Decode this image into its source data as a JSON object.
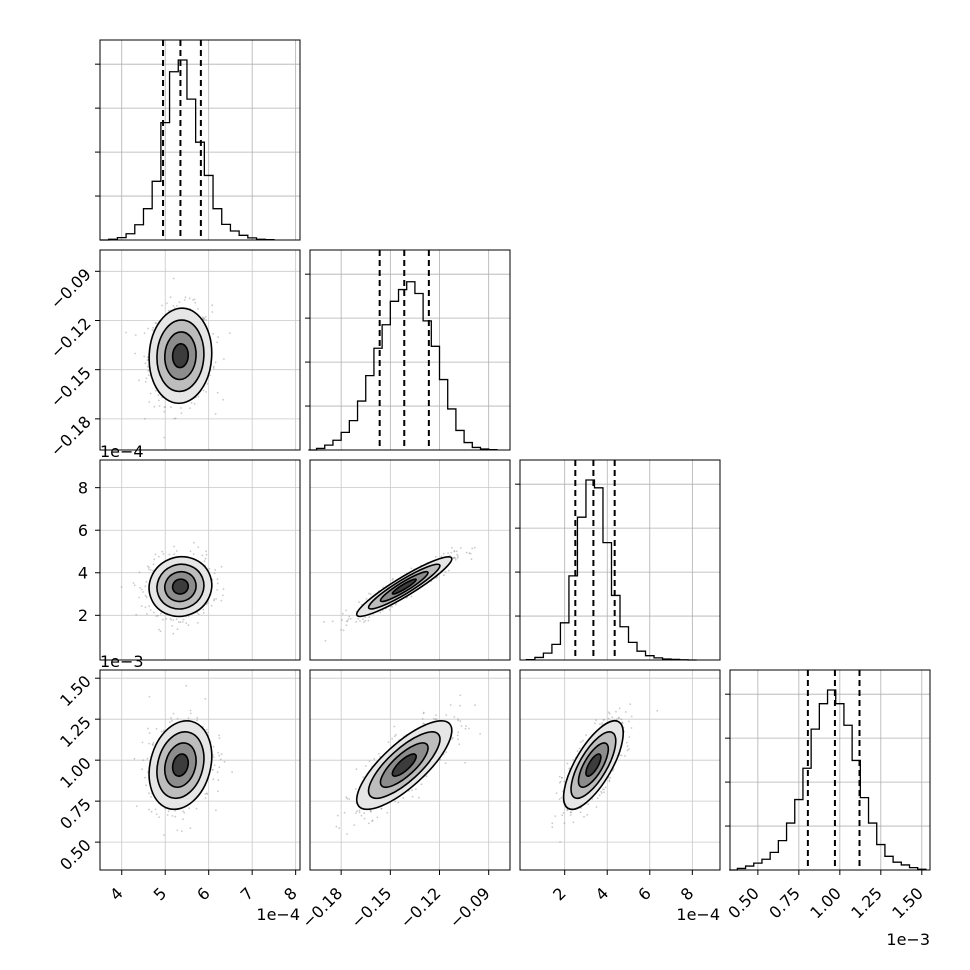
{
  "chart_data": {
    "type": "corner",
    "parameters": [
      {
        "range": [
          3.5,
          8.1
        ],
        "ticks": [
          4,
          5,
          6,
          7,
          8
        ],
        "tick_labels": [
          "4",
          "5",
          "6",
          "7",
          "8"
        ],
        "offset_label": "1e−4",
        "quantiles": [
          4.95,
          5.35,
          5.82
        ],
        "hist_bins": [
          [
            3.6,
            0.0
          ],
          [
            3.8,
            0.4
          ],
          [
            4.0,
            1.2
          ],
          [
            4.2,
            3.2
          ],
          [
            4.4,
            7.8
          ],
          [
            4.6,
            16
          ],
          [
            4.8,
            30
          ],
          [
            5.0,
            60
          ],
          [
            5.2,
            86
          ],
          [
            5.4,
            92
          ],
          [
            5.6,
            72
          ],
          [
            5.8,
            50
          ],
          [
            6.0,
            33
          ],
          [
            6.2,
            16
          ],
          [
            6.4,
            8
          ],
          [
            6.6,
            4.6
          ],
          [
            6.8,
            2.4
          ],
          [
            7.0,
            1.1
          ],
          [
            7.2,
            0.4
          ],
          [
            7.4,
            0.15
          ]
        ]
      },
      {
        "range": [
          -0.199,
          -0.077
        ],
        "ticks": [
          -0.18,
          -0.15,
          -0.12,
          -0.09
        ],
        "tick_labels": [
          "−0.18",
          "−0.15",
          "−0.12",
          "−0.09"
        ],
        "offset_label": "",
        "quantiles": [
          -0.1565,
          -0.1415,
          -0.1265
        ],
        "hist_bins": [
          [
            -0.1975,
            0.0
          ],
          [
            -0.1925,
            0.8
          ],
          [
            -0.1875,
            2.5
          ],
          [
            -0.1825,
            5
          ],
          [
            -0.1775,
            9
          ],
          [
            -0.1725,
            15
          ],
          [
            -0.1675,
            25
          ],
          [
            -0.1625,
            38
          ],
          [
            -0.1575,
            52
          ],
          [
            -0.1525,
            64
          ],
          [
            -0.1475,
            76
          ],
          [
            -0.1425,
            82
          ],
          [
            -0.1375,
            86
          ],
          [
            -0.1325,
            80
          ],
          [
            -0.1275,
            66
          ],
          [
            -0.1225,
            53
          ],
          [
            -0.1175,
            36
          ],
          [
            -0.1125,
            21
          ],
          [
            -0.1075,
            10
          ],
          [
            -0.1025,
            3.8
          ],
          [
            -0.0975,
            1.3
          ],
          [
            -0.0925,
            0.5
          ],
          [
            -0.0875,
            0.15
          ]
        ]
      },
      {
        "range": [
          -0.1,
          9.3
        ],
        "ticks": [
          2,
          4,
          6,
          8
        ],
        "tick_labels": [
          "2",
          "4",
          "6",
          "8"
        ],
        "offset_label": "1e−4",
        "quantiles": [
          2.5,
          3.35,
          4.35
        ],
        "hist_bins": [
          [
            0.4,
            0.2
          ],
          [
            0.8,
            1.3
          ],
          [
            1.2,
            3.5
          ],
          [
            1.6,
            8
          ],
          [
            2.0,
            19
          ],
          [
            2.4,
            43
          ],
          [
            2.8,
            73
          ],
          [
            3.2,
            92
          ],
          [
            3.6,
            88
          ],
          [
            4.0,
            60
          ],
          [
            4.4,
            33
          ],
          [
            4.8,
            17
          ],
          [
            5.2,
            9
          ],
          [
            5.6,
            4.5
          ],
          [
            6.0,
            2.2
          ],
          [
            6.4,
            1.1
          ],
          [
            6.8,
            0.5
          ],
          [
            7.2,
            0.3
          ],
          [
            7.6,
            0.1
          ],
          [
            8.0,
            0.0
          ]
        ]
      },
      {
        "range": [
          0.33,
          1.55
        ],
        "ticks": [
          0.5,
          0.75,
          1.0,
          1.25,
          1.5
        ],
        "tick_labels": [
          "0.50",
          "0.75",
          "1.00",
          "1.25",
          "1.50"
        ],
        "offset_label": "1e−3",
        "quantiles": [
          0.805,
          0.97,
          1.12
        ],
        "hist_bins": [
          [
            0.35,
            0.0
          ],
          [
            0.4,
            0.8
          ],
          [
            0.45,
            2
          ],
          [
            0.5,
            3.5
          ],
          [
            0.55,
            5.5
          ],
          [
            0.6,
            9
          ],
          [
            0.65,
            15
          ],
          [
            0.7,
            24
          ],
          [
            0.75,
            36
          ],
          [
            0.8,
            52
          ],
          [
            0.85,
            72
          ],
          [
            0.9,
            85
          ],
          [
            0.95,
            92
          ],
          [
            1.0,
            85
          ],
          [
            1.05,
            74
          ],
          [
            1.1,
            56
          ],
          [
            1.15,
            37
          ],
          [
            1.2,
            24
          ],
          [
            1.25,
            13
          ],
          [
            1.3,
            7
          ],
          [
            1.35,
            4
          ],
          [
            1.4,
            2.6
          ],
          [
            1.45,
            1.2
          ],
          [
            1.5,
            0.4
          ]
        ]
      }
    ],
    "pairs": [
      {
        "row": 1,
        "col": 0,
        "center": [
          5.35,
          -0.1415
        ],
        "sd": [
          0.36,
          0.0145
        ],
        "corr": 0.05
      },
      {
        "row": 2,
        "col": 0,
        "center": [
          5.35,
          3.35
        ],
        "sd": [
          0.36,
          0.7
        ],
        "corr": 0.05
      },
      {
        "row": 2,
        "col": 1,
        "center": [
          -0.1415,
          3.35
        ],
        "sd": [
          0.0145,
          0.7
        ],
        "corr": 0.93
      },
      {
        "row": 3,
        "col": 0,
        "center": [
          5.35,
          0.97
        ],
        "sd": [
          0.36,
          0.135
        ],
        "corr": 0.2
      },
      {
        "row": 3,
        "col": 1,
        "center": [
          -0.1415,
          0.97
        ],
        "sd": [
          0.0145,
          0.135
        ],
        "corr": 0.78
      },
      {
        "row": 3,
        "col": 2,
        "center": [
          3.35,
          0.97
        ],
        "sd": [
          0.7,
          0.135
        ],
        "corr": 0.72
      }
    ],
    "contour_levels_sigma": [
      0.5,
      1.0,
      1.5,
      2.0
    ],
    "grid": true
  }
}
